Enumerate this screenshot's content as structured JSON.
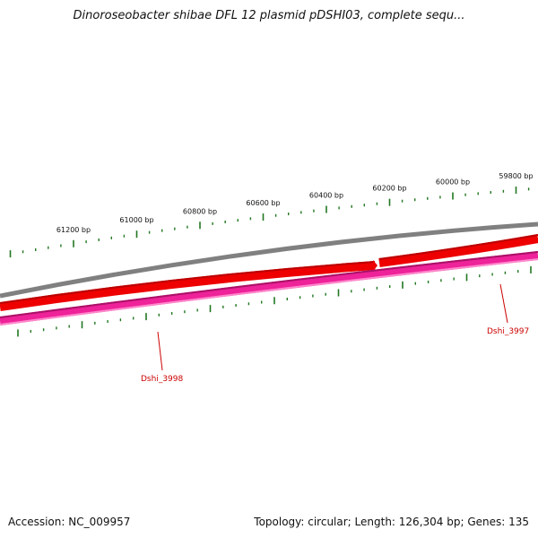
{
  "title": "Dinoroseobacter shibae DFL 12 plasmid pDSHI03, complete sequ...",
  "footer": {
    "accession": "Accession: NC_009957",
    "summary": "Topology: circular; Length: 126,304 bp; Genes: 135"
  },
  "colors": {
    "backbone": "#808080",
    "forward_strand": "#ee0000",
    "reverse_strand": "#ee2299",
    "tick": "#227722",
    "gene_label": "#cc0000"
  },
  "chart_data": {
    "type": "diagram",
    "ticks_bp": [
      {
        "bp": 61200,
        "label": "61200 bp"
      },
      {
        "bp": 61000,
        "label": "61000 bp"
      },
      {
        "bp": 60800,
        "label": "60800 bp"
      },
      {
        "bp": 60600,
        "label": "60600 bp"
      },
      {
        "bp": 60400,
        "label": "60400 bp"
      },
      {
        "bp": 60200,
        "label": "60200 bp"
      },
      {
        "bp": 60000,
        "label": "60000 bp"
      },
      {
        "bp": 59800,
        "label": "59800 bp"
      }
    ],
    "genes": [
      {
        "name": "Dshi_3998",
        "strand": "reverse"
      },
      {
        "name": "Dshi_3997",
        "strand": "reverse"
      }
    ]
  }
}
